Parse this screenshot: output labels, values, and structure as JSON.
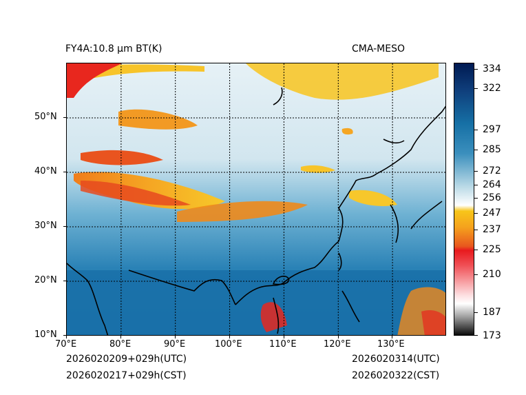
{
  "header": {
    "title_left": "FY4A:10.8 µm BT(K)",
    "title_right": "CMA-MESO"
  },
  "map": {
    "lon_labels": [
      "70°E",
      "80°E",
      "90°E",
      "100°E",
      "110°E",
      "120°E",
      "130°E"
    ],
    "lat_labels": [
      "50°N",
      "40°N",
      "30°N",
      "20°N",
      "10°N"
    ]
  },
  "colorbar": {
    "ticks": [
      "334",
      "322",
      "297",
      "285",
      "272",
      "264",
      "256",
      "247",
      "237",
      "225",
      "210",
      "187",
      "173"
    ],
    "colors": {
      "cold_black": "#000000",
      "grey": "#9b9b9b",
      "white": "#ffffff",
      "pink": "#f7a9ad",
      "red": "#e81a1e",
      "orange": "#f08a1a",
      "yellow": "#f7c519",
      "light_blue": "#dcedf4",
      "mid_blue": "#4aa0c8",
      "ocean_blue": "#1673a8",
      "navy": "#001a52"
    }
  },
  "footer": {
    "init_utc": "2026020209+029h(UTC)",
    "init_cst": "2026020217+029h(CST)",
    "valid_utc": "2026020314(UTC)",
    "valid_cst": "2026020322(CST)"
  }
}
